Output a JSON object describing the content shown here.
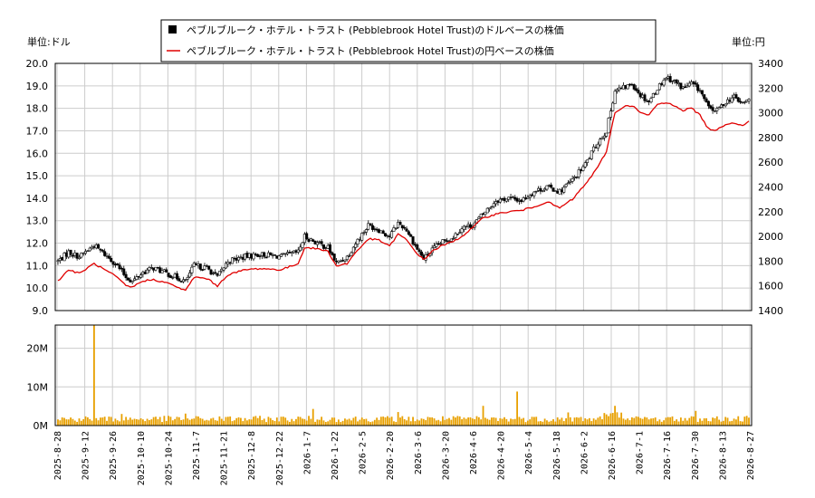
{
  "chart_data": [
    {
      "type": "candlestick",
      "title": "",
      "legend": {
        "position": "top-center",
        "entries": [
          {
            "label": "ペブルブルーク・ホテル・トラスト (Pebblebrook Hotel Trust)のドルベースの株価",
            "color": "#000000",
            "marker": "square"
          },
          {
            "label": "ペブルブルーク・ホテル・トラスト (Pebblebrook Hotel Trust)の円ベースの株価",
            "color": "#e00000",
            "marker": "line"
          }
        ]
      },
      "left_axis": {
        "unit_label": "単位:ドル",
        "range": [
          9.0,
          20.0
        ],
        "ticks": [
          "9.0",
          "10.0",
          "11.0",
          "12.0",
          "13.0",
          "14.0",
          "15.0",
          "16.0",
          "17.0",
          "18.0",
          "19.0",
          "20.0"
        ]
      },
      "right_axis": {
        "unit_label": "単位:円",
        "range": [
          1400,
          3400
        ],
        "ticks": [
          "1400",
          "1600",
          "1800",
          "2000",
          "2200",
          "2400",
          "2600",
          "2800",
          "3000",
          "3200",
          "3400"
        ]
      },
      "grid": true,
      "usd_keypoints": [
        [
          0,
          11.2
        ],
        [
          5,
          11.6
        ],
        [
          10,
          11.4
        ],
        [
          17,
          11.9
        ],
        [
          22,
          11.5
        ],
        [
          27,
          11.1
        ],
        [
          32,
          10.5
        ],
        [
          35,
          10.3
        ],
        [
          40,
          10.7
        ],
        [
          45,
          10.9
        ],
        [
          50,
          10.7
        ],
        [
          55,
          10.5
        ],
        [
          60,
          10.3
        ],
        [
          64,
          11.0
        ],
        [
          70,
          10.9
        ],
        [
          75,
          10.5
        ],
        [
          80,
          11.2
        ],
        [
          88,
          11.4
        ],
        [
          95,
          11.5
        ],
        [
          105,
          11.4
        ],
        [
          113,
          11.6
        ],
        [
          116,
          12.3
        ],
        [
          122,
          12.0
        ],
        [
          127,
          11.8
        ],
        [
          131,
          11.1
        ],
        [
          136,
          11.4
        ],
        [
          140,
          12.0
        ],
        [
          146,
          12.8
        ],
        [
          151,
          12.6
        ],
        [
          156,
          12.3
        ],
        [
          160,
          12.9
        ],
        [
          164,
          12.6
        ],
        [
          168,
          11.9
        ],
        [
          172,
          11.3
        ],
        [
          176,
          11.7
        ],
        [
          180,
          12.0
        ],
        [
          186,
          12.3
        ],
        [
          190,
          12.7
        ],
        [
          195,
          12.8
        ],
        [
          200,
          13.3
        ],
        [
          206,
          13.9
        ],
        [
          212,
          14.0
        ],
        [
          218,
          13.9
        ],
        [
          224,
          14.3
        ],
        [
          230,
          14.5
        ],
        [
          236,
          14.3
        ],
        [
          242,
          14.8
        ],
        [
          248,
          15.5
        ],
        [
          254,
          16.5
        ],
        [
          258,
          17.0
        ],
        [
          262,
          18.8
        ],
        [
          266,
          18.9
        ],
        [
          270,
          19.1
        ],
        [
          274,
          18.6
        ],
        [
          278,
          18.3
        ],
        [
          282,
          18.9
        ],
        [
          286,
          19.4
        ],
        [
          290,
          19.2
        ],
        [
          294,
          18.9
        ],
        [
          298,
          19.1
        ],
        [
          302,
          18.8
        ],
        [
          306,
          18.0
        ],
        [
          310,
          17.9
        ],
        [
          314,
          18.3
        ],
        [
          318,
          18.5
        ],
        [
          322,
          18.2
        ],
        [
          325,
          18.4
        ]
      ],
      "jpy_keypoints": [
        [
          0,
          1640
        ],
        [
          5,
          1730
        ],
        [
          10,
          1700
        ],
        [
          17,
          1780
        ],
        [
          22,
          1730
        ],
        [
          27,
          1680
        ],
        [
          32,
          1600
        ],
        [
          35,
          1590
        ],
        [
          40,
          1640
        ],
        [
          45,
          1650
        ],
        [
          50,
          1630
        ],
        [
          55,
          1600
        ],
        [
          60,
          1560
        ],
        [
          64,
          1670
        ],
        [
          70,
          1660
        ],
        [
          75,
          1600
        ],
        [
          80,
          1690
        ],
        [
          88,
          1730
        ],
        [
          95,
          1740
        ],
        [
          105,
          1730
        ],
        [
          113,
          1780
        ],
        [
          116,
          1910
        ],
        [
          122,
          1900
        ],
        [
          127,
          1880
        ],
        [
          131,
          1760
        ],
        [
          136,
          1780
        ],
        [
          140,
          1870
        ],
        [
          146,
          1980
        ],
        [
          151,
          1970
        ],
        [
          156,
          1920
        ],
        [
          160,
          2020
        ],
        [
          164,
          1970
        ],
        [
          168,
          1880
        ],
        [
          172,
          1810
        ],
        [
          176,
          1880
        ],
        [
          180,
          1920
        ],
        [
          186,
          1960
        ],
        [
          190,
          2000
        ],
        [
          195,
          2070
        ],
        [
          200,
          2150
        ],
        [
          206,
          2180
        ],
        [
          212,
          2200
        ],
        [
          218,
          2210
        ],
        [
          224,
          2240
        ],
        [
          230,
          2280
        ],
        [
          236,
          2230
        ],
        [
          242,
          2300
        ],
        [
          248,
          2420
        ],
        [
          254,
          2560
        ],
        [
          258,
          2690
        ],
        [
          262,
          3000
        ],
        [
          266,
          3050
        ],
        [
          270,
          3060
        ],
        [
          274,
          3000
        ],
        [
          278,
          2980
        ],
        [
          282,
          3070
        ],
        [
          286,
          3080
        ],
        [
          290,
          3060
        ],
        [
          294,
          3020
        ],
        [
          298,
          3040
        ],
        [
          302,
          2980
        ],
        [
          306,
          2870
        ],
        [
          310,
          2860
        ],
        [
          314,
          2910
        ],
        [
          318,
          2920
        ],
        [
          322,
          2900
        ],
        [
          325,
          2930
        ]
      ]
    },
    {
      "type": "bar",
      "title": "",
      "y_axis": {
        "range": [
          0,
          26000000
        ],
        "ticks": [
          "0M",
          "10M",
          "20M"
        ]
      },
      "x_axis": {
        "ticks": [
          "2025-8-28",
          "2025-9-12",
          "2025-9-26",
          "2025-10-10",
          "2025-10-24",
          "2025-11-7",
          "2025-11-21",
          "2025-12-8",
          "2025-12-22",
          "2026-1-7",
          "2026-1-22",
          "2026-2-5",
          "2026-2-20",
          "2026-3-6",
          "2026-3-20",
          "2026-4-6",
          "2026-4-20",
          "2026-5-4",
          "2026-5-18",
          "2026-6-2",
          "2026-6-16",
          "2026-7-1",
          "2026-7-16",
          "2026-7-30",
          "2026-8-13",
          "2026-8-27"
        ]
      },
      "grid": true,
      "color": "#e8a000",
      "spikes": [
        [
          17,
          26000000
        ],
        [
          30,
          3000000
        ],
        [
          60,
          3100000
        ],
        [
          120,
          4300000
        ],
        [
          160,
          3500000
        ],
        [
          200,
          5100000
        ],
        [
          216,
          8800000
        ],
        [
          240,
          3400000
        ],
        [
          262,
          5100000
        ],
        [
          300,
          3800000
        ]
      ],
      "baseline_volume": 1800000
    }
  ]
}
